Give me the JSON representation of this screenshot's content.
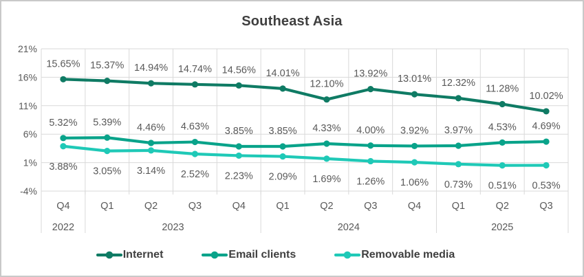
{
  "window": {
    "background": "#ffffff",
    "border_color": "#c9c9c9"
  },
  "chart_data": {
    "type": "line",
    "title": "Southeast Asia",
    "categories": [
      "Q4",
      "Q1",
      "Q2",
      "Q3",
      "Q4",
      "Q1",
      "Q2",
      "Q3",
      "Q4",
      "Q1",
      "Q2",
      "Q3"
    ],
    "year_groups": [
      {
        "label": "2022",
        "count": 1
      },
      {
        "label": "2023",
        "count": 4
      },
      {
        "label": "2024",
        "count": 4
      },
      {
        "label": "2025",
        "count": 3
      }
    ],
    "ylim": [
      -4,
      21
    ],
    "yticks": [
      21,
      16,
      11,
      6,
      1,
      -4
    ],
    "ytick_suffix": "%",
    "grid": true,
    "legend_position": "bottom",
    "series": [
      {
        "name": "Internet",
        "color": "#0f7b64",
        "label_position": "above",
        "values": [
          15.65,
          15.37,
          14.94,
          14.74,
          14.56,
          14.01,
          12.1,
          13.92,
          13.01,
          12.32,
          11.28,
          10.02
        ]
      },
      {
        "name": "Email clients",
        "color": "#09a38a",
        "label_position": "above",
        "values": [
          5.32,
          5.39,
          4.46,
          4.63,
          3.85,
          3.85,
          4.33,
          4.0,
          3.92,
          3.97,
          4.53,
          4.69
        ]
      },
      {
        "name": "Removable media",
        "color": "#1fc9b7",
        "label_position": "below",
        "values": [
          3.88,
          3.05,
          3.14,
          2.52,
          2.23,
          2.09,
          1.69,
          1.26,
          1.06,
          0.73,
          0.51,
          0.53
        ]
      }
    ],
    "gridline_color": "#d9d9d9",
    "axis_label_color": "#595959",
    "data_label_color": "#595959",
    "title_color": "#3f3f3f"
  }
}
